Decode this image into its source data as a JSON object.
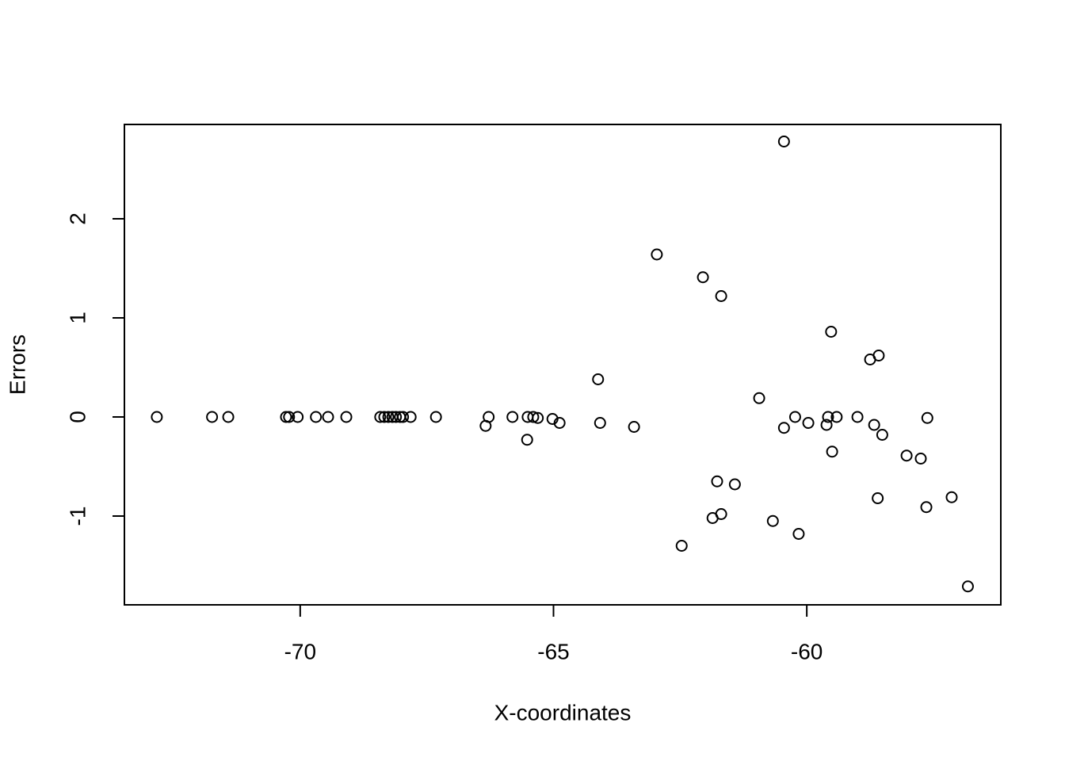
{
  "chart_data": {
    "type": "scatter",
    "xlabel": "X-coordinates",
    "ylabel": "Errors",
    "xlim": [
      -73.47,
      -56.17
    ],
    "ylim": [
      -1.896,
      2.952
    ],
    "xticks": [
      -70,
      -65,
      -60
    ],
    "yticks": [
      -1,
      0,
      1,
      2
    ],
    "series": [
      {
        "color": "#000000",
        "x": [
          -72.83,
          -71.74,
          -71.42,
          -70.28,
          -70.22,
          -70.05,
          -69.69,
          -69.45,
          -69.09,
          -68.42,
          -68.34,
          -68.26,
          -68.18,
          -68.11,
          -68.03,
          -67.97,
          -67.82,
          -67.32,
          -66.34,
          -66.28,
          -65.81,
          -65.52,
          -65.51,
          -65.4,
          -65.31,
          -65.02,
          -64.88,
          -64.12,
          -64.08,
          -63.41,
          -62.96,
          -62.47,
          -62.05,
          -61.86,
          -61.77,
          -61.69,
          -61.69,
          -61.42,
          -60.94,
          -60.67,
          -60.45,
          -60.45,
          -60.23,
          -60.16,
          -59.97,
          -59.61,
          -59.58,
          -59.52,
          -59.5,
          -59.41,
          -59.0,
          -58.75,
          -58.67,
          -58.6,
          -58.58,
          -58.51,
          -58.03,
          -57.75,
          -57.64,
          -57.62,
          -57.14,
          -56.82
        ],
        "values": [
          0,
          0,
          0,
          0,
          0,
          0,
          0,
          0,
          0,
          0,
          0,
          0,
          0,
          0,
          0,
          0,
          0,
          0,
          -0.09,
          0,
          0,
          -0.23,
          0,
          0,
          -0.01,
          -0.02,
          -0.06,
          0.38,
          -0.06,
          -0.1,
          1.64,
          -1.3,
          1.41,
          -1.02,
          -0.65,
          1.22,
          -0.98,
          -0.68,
          0.19,
          -1.05,
          2.78,
          -0.11,
          0,
          -1.18,
          -0.06,
          -0.08,
          0,
          0.86,
          -0.35,
          0,
          0,
          0.58,
          -0.08,
          -0.82,
          0.62,
          -0.18,
          -0.39,
          -0.42,
          -0.91,
          -0.01,
          -0.81,
          -1.71
        ]
      }
    ]
  }
}
